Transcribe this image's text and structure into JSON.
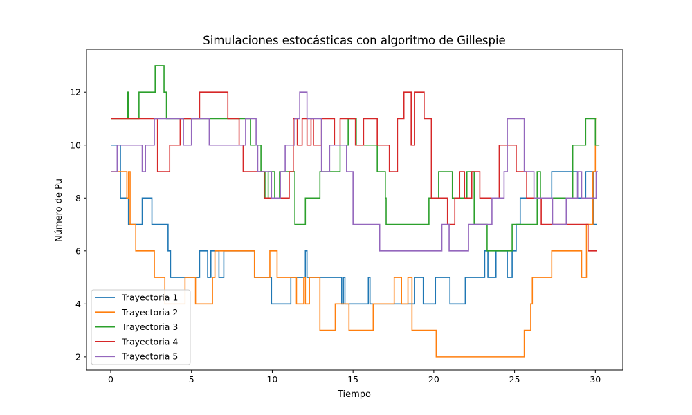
{
  "chart_data": {
    "type": "line",
    "step": true,
    "title": "Simulaciones estocásticas con algoritmo de Gillespie",
    "xlabel": "Tiempo",
    "ylabel": "Número de Pu",
    "xlim": [
      -1.5,
      31.7
    ],
    "ylim": [
      1.5,
      13.6
    ],
    "xticks": [
      0,
      5,
      10,
      15,
      20,
      25,
      30
    ],
    "yticks": [
      2,
      4,
      6,
      8,
      10,
      12
    ],
    "grid": false,
    "legend_position": "lower-left",
    "series": [
      {
        "name": "Trayectoria 1",
        "color": "#1f77b4",
        "points": [
          [
            0,
            10
          ],
          [
            0.6,
            8
          ],
          [
            1.1,
            7
          ],
          [
            1.95,
            8
          ],
          [
            2.55,
            7
          ],
          [
            3.55,
            6
          ],
          [
            3.7,
            5
          ],
          [
            5.5,
            6
          ],
          [
            6.0,
            5
          ],
          [
            6.2,
            6
          ],
          [
            6.7,
            5
          ],
          [
            7.0,
            6
          ],
          [
            8.6,
            6
          ],
          [
            8.9,
            5
          ],
          [
            9.45,
            5
          ],
          [
            9.95,
            4
          ],
          [
            11.15,
            5
          ],
          [
            11.8,
            5
          ],
          [
            12.05,
            6
          ],
          [
            12.15,
            5
          ],
          [
            12.4,
            5
          ],
          [
            14.3,
            4
          ],
          [
            14.4,
            5
          ],
          [
            14.5,
            4
          ],
          [
            15.95,
            5
          ],
          [
            16.05,
            4
          ],
          [
            18.8,
            5
          ],
          [
            19.35,
            4
          ],
          [
            20.1,
            5
          ],
          [
            21.0,
            4
          ],
          [
            21.95,
            5
          ],
          [
            22.6,
            5
          ],
          [
            23.15,
            6
          ],
          [
            23.35,
            5
          ],
          [
            23.85,
            6
          ],
          [
            24.2,
            6
          ],
          [
            24.55,
            5
          ],
          [
            24.85,
            6
          ],
          [
            25.1,
            7
          ],
          [
            25.35,
            8
          ],
          [
            26.7,
            8
          ],
          [
            27.3,
            9
          ],
          [
            28.5,
            9
          ],
          [
            28.9,
            8
          ],
          [
            29.1,
            8
          ],
          [
            29.4,
            9
          ],
          [
            29.9,
            7
          ],
          [
            30.1,
            7
          ]
        ]
      },
      {
        "name": "Trayectoria 2",
        "color": "#ff7f0e",
        "points": [
          [
            0,
            9
          ],
          [
            0.7,
            9
          ],
          [
            1.0,
            8
          ],
          [
            1.1,
            9
          ],
          [
            1.2,
            7
          ],
          [
            1.55,
            6
          ],
          [
            2.7,
            5
          ],
          [
            3.35,
            4
          ],
          [
            4.6,
            5
          ],
          [
            5.25,
            4
          ],
          [
            5.5,
            4
          ],
          [
            6.3,
            5
          ],
          [
            6.45,
            6
          ],
          [
            8.9,
            5
          ],
          [
            9.85,
            6
          ],
          [
            10.3,
            5
          ],
          [
            11.5,
            4
          ],
          [
            11.95,
            5
          ],
          [
            12.05,
            4
          ],
          [
            12.3,
            5
          ],
          [
            12.95,
            3
          ],
          [
            13.9,
            4
          ],
          [
            14.75,
            3
          ],
          [
            16.25,
            4
          ],
          [
            17.55,
            5
          ],
          [
            18.0,
            4
          ],
          [
            18.4,
            5
          ],
          [
            18.65,
            3
          ],
          [
            19.6,
            3
          ],
          [
            20.15,
            2
          ],
          [
            25.6,
            3
          ],
          [
            26.0,
            4
          ],
          [
            26.1,
            5
          ],
          [
            27.3,
            6
          ],
          [
            29.15,
            5
          ],
          [
            29.45,
            7
          ],
          [
            29.85,
            9
          ],
          [
            30.0,
            11
          ],
          [
            30.05,
            11
          ]
        ]
      },
      {
        "name": "Trayectoria 3",
        "color": "#2ca02c",
        "points": [
          [
            0,
            11
          ],
          [
            1.05,
            12
          ],
          [
            1.1,
            11
          ],
          [
            1.75,
            12
          ],
          [
            2.75,
            13
          ],
          [
            3.3,
            12
          ],
          [
            3.45,
            11
          ],
          [
            4.5,
            11
          ],
          [
            5.1,
            11
          ],
          [
            7.95,
            11
          ],
          [
            8.65,
            10
          ],
          [
            9.3,
            9
          ],
          [
            9.55,
            8
          ],
          [
            9.75,
            9
          ],
          [
            10.15,
            8
          ],
          [
            10.45,
            9
          ],
          [
            11.4,
            7
          ],
          [
            12.05,
            8
          ],
          [
            12.95,
            9
          ],
          [
            14.2,
            10
          ],
          [
            14.7,
            11
          ],
          [
            15.2,
            10
          ],
          [
            16.5,
            9
          ],
          [
            17.0,
            8
          ],
          [
            17.05,
            7
          ],
          [
            19.7,
            8
          ],
          [
            20.0,
            8
          ],
          [
            20.3,
            9
          ],
          [
            21.15,
            8
          ],
          [
            22.05,
            9
          ],
          [
            22.5,
            7
          ],
          [
            23.3,
            6
          ],
          [
            24.85,
            7
          ],
          [
            26.4,
            9
          ],
          [
            26.6,
            8
          ],
          [
            27.5,
            8
          ],
          [
            28.6,
            10
          ],
          [
            29.4,
            11
          ],
          [
            30.0,
            10
          ],
          [
            30.25,
            10
          ]
        ]
      },
      {
        "name": "Trayectoria 4",
        "color": "#d62728",
        "points": [
          [
            0,
            11
          ],
          [
            1.6,
            11
          ],
          [
            2.9,
            9
          ],
          [
            3.65,
            10
          ],
          [
            4.3,
            11
          ],
          [
            4.8,
            11
          ],
          [
            5.5,
            12
          ],
          [
            7.25,
            11
          ],
          [
            7.95,
            10
          ],
          [
            8.2,
            9
          ],
          [
            9.05,
            9
          ],
          [
            9.5,
            8
          ],
          [
            10.6,
            8
          ],
          [
            11.05,
            9
          ],
          [
            11.3,
            11
          ],
          [
            11.55,
            10
          ],
          [
            11.85,
            11
          ],
          [
            12.15,
            10
          ],
          [
            12.4,
            11
          ],
          [
            12.55,
            10
          ],
          [
            13.05,
            11
          ],
          [
            13.85,
            10
          ],
          [
            14.2,
            11
          ],
          [
            14.65,
            11
          ],
          [
            15.15,
            10
          ],
          [
            15.65,
            11
          ],
          [
            16.05,
            11
          ],
          [
            16.5,
            10
          ],
          [
            17.25,
            9
          ],
          [
            17.75,
            11
          ],
          [
            18.15,
            12
          ],
          [
            18.6,
            10
          ],
          [
            18.8,
            12
          ],
          [
            19.4,
            11
          ],
          [
            19.85,
            8
          ],
          [
            20.5,
            8
          ],
          [
            20.85,
            7
          ],
          [
            21.3,
            8
          ],
          [
            21.6,
            9
          ],
          [
            21.9,
            8
          ],
          [
            22.35,
            9
          ],
          [
            22.85,
            8
          ],
          [
            23.65,
            8
          ],
          [
            24.05,
            10
          ],
          [
            24.75,
            10
          ],
          [
            25.1,
            9
          ],
          [
            25.75,
            8
          ],
          [
            26.65,
            7
          ],
          [
            28.75,
            7
          ],
          [
            29.15,
            7
          ],
          [
            29.55,
            6
          ],
          [
            30.1,
            6
          ]
        ]
      },
      {
        "name": "Trayectoria 5",
        "color": "#9467bd",
        "points": [
          [
            0,
            9
          ],
          [
            0.4,
            10
          ],
          [
            1.45,
            10
          ],
          [
            1.95,
            9
          ],
          [
            2.15,
            10
          ],
          [
            2.7,
            11
          ],
          [
            3.5,
            11
          ],
          [
            4.5,
            10
          ],
          [
            5.0,
            11
          ],
          [
            5.25,
            11
          ],
          [
            6.1,
            10
          ],
          [
            7.7,
            10
          ],
          [
            8.35,
            11
          ],
          [
            9.0,
            10
          ],
          [
            9.1,
            9
          ],
          [
            9.95,
            8
          ],
          [
            10.5,
            9
          ],
          [
            10.8,
            10
          ],
          [
            11.4,
            11
          ],
          [
            11.7,
            12
          ],
          [
            11.9,
            12
          ],
          [
            12.15,
            11
          ],
          [
            13.05,
            9
          ],
          [
            13.55,
            10
          ],
          [
            14.05,
            10
          ],
          [
            14.6,
            9
          ],
          [
            15.0,
            7
          ],
          [
            16.1,
            7
          ],
          [
            16.65,
            6
          ],
          [
            19.05,
            6
          ],
          [
            19.95,
            6
          ],
          [
            20.5,
            7
          ],
          [
            20.95,
            6
          ],
          [
            21.5,
            6
          ],
          [
            22.15,
            7
          ],
          [
            23.2,
            7
          ],
          [
            23.6,
            8
          ],
          [
            24.35,
            9
          ],
          [
            24.55,
            11
          ],
          [
            25.2,
            11
          ],
          [
            25.6,
            9
          ],
          [
            26.2,
            8
          ],
          [
            26.75,
            8
          ],
          [
            27.35,
            7
          ],
          [
            28.2,
            8
          ],
          [
            28.9,
            9
          ],
          [
            29.15,
            8
          ],
          [
            30.05,
            9
          ],
          [
            30.15,
            9
          ]
        ]
      }
    ]
  }
}
